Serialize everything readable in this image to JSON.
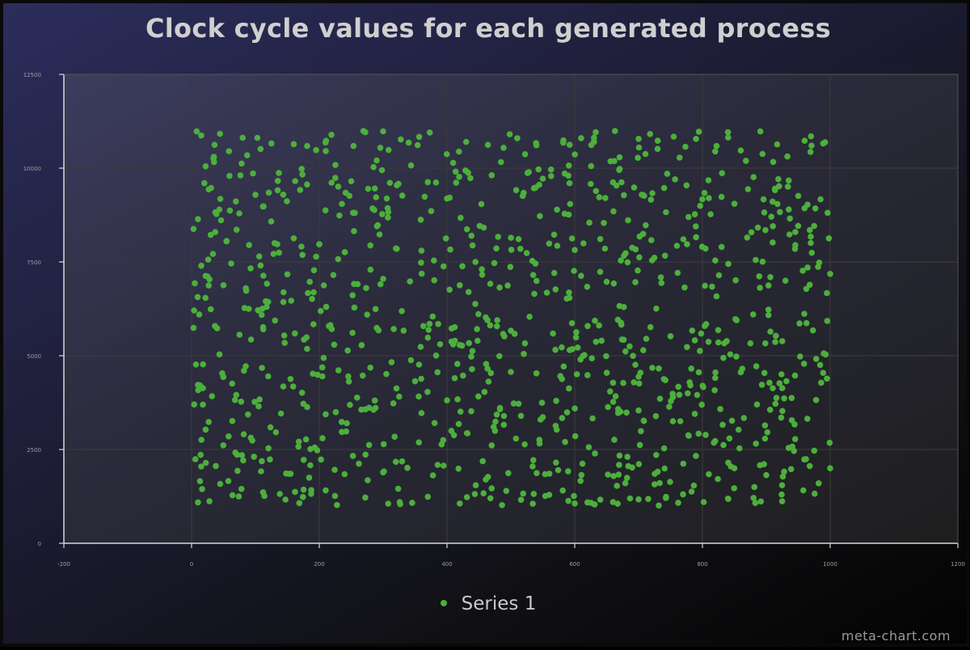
{
  "watermark": "meta-chart.com",
  "chart_data": {
    "type": "scatter",
    "title": "Clock cycle values for each generated process",
    "xlabel": "",
    "ylabel": "",
    "xlim": [
      -200,
      1200
    ],
    "ylim": [
      0,
      12500
    ],
    "x_ticks": [
      "-200",
      "0",
      "200",
      "400",
      "600",
      "800",
      "1000",
      "1200"
    ],
    "y_ticks": [
      "0",
      "2500",
      "5000",
      "7500",
      "10000",
      "12500"
    ],
    "grid": true,
    "legend_position": "bottom",
    "colors": {
      "series": "#4caf3c",
      "grid": "#3a3a3a",
      "axis": "#d8d8d8"
    },
    "series": [
      {
        "name": "Series 1",
        "point_count": 1000,
        "x_range": [
          1,
          1000
        ],
        "y_range": [
          1000,
          11000
        ],
        "points": [
          [
            3,
            8380
          ],
          [
            8,
            10980
          ],
          [
            15,
            10870
          ],
          [
            22,
            10050
          ],
          [
            35,
            10300
          ],
          [
            36,
            10620
          ],
          [
            80,
            10810
          ],
          [
            108,
            10510
          ],
          [
            125,
            10660
          ],
          [
            160,
            10640
          ],
          [
            181,
            10590
          ],
          [
            195,
            10480
          ],
          [
            219,
            10890
          ],
          [
            269,
            10990
          ],
          [
            300,
            10980
          ],
          [
            340,
            10680
          ],
          [
            373,
            10950
          ],
          [
            430,
            10700
          ],
          [
            464,
            10620
          ],
          [
            510,
            10800
          ],
          [
            540,
            10610
          ],
          [
            582,
            10680
          ],
          [
            610,
            10800
          ],
          [
            630,
            10710
          ],
          [
            663,
            10990
          ],
          [
            700,
            10780
          ],
          [
            730,
            10730
          ],
          [
            755,
            10840
          ],
          [
            790,
            10780
          ],
          [
            822,
            10590
          ],
          [
            840,
            10960
          ],
          [
            860,
            10470
          ],
          [
            894,
            10380
          ],
          [
            960,
            10730
          ],
          [
            970,
            10850
          ],
          [
            992,
            10690
          ],
          [
            20,
            9600
          ],
          [
            45,
            9180
          ],
          [
            60,
            8870
          ],
          [
            100,
            9290
          ],
          [
            135,
            9660
          ],
          [
            170,
            9420
          ],
          [
            225,
            9740
          ],
          [
            250,
            9650
          ],
          [
            287,
            9460
          ],
          [
            330,
            9270
          ],
          [
            365,
            9240
          ],
          [
            400,
            9190
          ],
          [
            433,
            9880
          ],
          [
            470,
            9810
          ],
          [
            520,
            9340
          ],
          [
            550,
            9720
          ],
          [
            590,
            9800
          ],
          [
            625,
            9580
          ],
          [
            660,
            9620
          ],
          [
            705,
            9290
          ],
          [
            740,
            9470
          ],
          [
            775,
            9540
          ],
          [
            810,
            9200
          ],
          [
            850,
            9050
          ],
          [
            880,
            9760
          ],
          [
            920,
            9520
          ],
          [
            950,
            9260
          ],
          [
            985,
            9170
          ],
          [
            10,
            8640
          ],
          [
            30,
            8220
          ],
          [
            55,
            8060
          ],
          [
            90,
            7950
          ],
          [
            130,
            8000
          ],
          [
            160,
            8130
          ],
          [
            200,
            7970
          ],
          [
            240,
            7760
          ],
          [
            280,
            7940
          ],
          [
            320,
            7860
          ],
          [
            360,
            7800
          ],
          [
            405,
            7830
          ],
          [
            440,
            7940
          ],
          [
            480,
            8170
          ],
          [
            515,
            7850
          ],
          [
            560,
            7990
          ],
          [
            600,
            7820
          ],
          [
            640,
            8110
          ],
          [
            690,
            7880
          ],
          [
            720,
            8080
          ],
          [
            760,
            7930
          ],
          [
            790,
            8160
          ],
          [
            830,
            7900
          ],
          [
            870,
            8150
          ],
          [
            910,
            8020
          ],
          [
            945,
            7850
          ],
          [
            998,
            8130
          ],
          [
            5,
            6930
          ],
          [
            25,
            7110
          ],
          [
            50,
            6880
          ],
          [
            85,
            6800
          ],
          [
            118,
            6920
          ],
          [
            150,
            7170
          ],
          [
            185,
            6970
          ],
          [
            222,
            7150
          ],
          [
            260,
            6910
          ],
          [
            300,
            7050
          ],
          [
            342,
            6980
          ],
          [
            380,
            7010
          ],
          [
            420,
            6880
          ],
          [
            455,
            7160
          ],
          [
            495,
            6870
          ],
          [
            535,
            7150
          ],
          [
            570,
            6770
          ],
          [
            610,
            7130
          ],
          [
            650,
            6970
          ],
          [
            695,
            6960
          ],
          [
            735,
            7090
          ],
          [
            772,
            6820
          ],
          [
            815,
            6840
          ],
          [
            852,
            7010
          ],
          [
            890,
            6810
          ],
          [
            930,
            7000
          ],
          [
            968,
            6890
          ],
          [
            1000,
            7180
          ],
          [
            12,
            6100
          ],
          [
            40,
            5730
          ],
          [
            75,
            5560
          ],
          [
            112,
            5760
          ],
          [
            145,
            5540
          ],
          [
            180,
            5490
          ],
          [
            215,
            5790
          ],
          [
            252,
            5610
          ],
          [
            290,
            5740
          ],
          [
            332,
            5670
          ],
          [
            370,
            5480
          ],
          [
            412,
            5760
          ],
          [
            447,
            5710
          ],
          [
            488,
            5580
          ],
          [
            522,
            5330
          ],
          [
            566,
            5590
          ],
          [
            602,
            5490
          ],
          [
            642,
            5400
          ],
          [
            686,
            5250
          ],
          [
            712,
            5450
          ],
          [
            750,
            5520
          ],
          [
            798,
            5590
          ],
          [
            838,
            5390
          ],
          [
            875,
            5330
          ],
          [
            915,
            5530
          ],
          [
            952,
            5860
          ],
          [
            990,
            5060
          ],
          [
            18,
            4770
          ],
          [
            48,
            4530
          ],
          [
            82,
            4600
          ],
          [
            120,
            4450
          ],
          [
            155,
            4380
          ],
          [
            190,
            4520
          ],
          [
            230,
            4610
          ],
          [
            268,
            4470
          ],
          [
            305,
            4510
          ],
          [
            350,
            4320
          ],
          [
            385,
            4560
          ],
          [
            425,
            4470
          ],
          [
            465,
            4310
          ],
          [
            500,
            4570
          ],
          [
            540,
            4530
          ],
          [
            580,
            4380
          ],
          [
            620,
            4480
          ],
          [
            660,
            4280
          ],
          [
            700,
            4440
          ],
          [
            742,
            4350
          ],
          [
            780,
            4290
          ],
          [
            820,
            4410
          ],
          [
            860,
            4560
          ],
          [
            905,
            4280
          ],
          [
            945,
            4470
          ],
          [
            995,
            4390
          ],
          [
            4,
            3700
          ],
          [
            32,
            3920
          ],
          [
            68,
            3820
          ],
          [
            105,
            3650
          ],
          [
            140,
            3460
          ],
          [
            175,
            3720
          ],
          [
            210,
            3440
          ],
          [
            248,
            3690
          ],
          [
            285,
            3560
          ],
          [
            325,
            3910
          ],
          [
            360,
            3470
          ],
          [
            400,
            3810
          ],
          [
            438,
            3520
          ],
          [
            478,
            3430
          ],
          [
            512,
            3720
          ],
          [
            550,
            3360
          ],
          [
            588,
            3490
          ],
          [
            628,
            3330
          ],
          [
            668,
            3580
          ],
          [
            708,
            3270
          ],
          [
            748,
            3640
          ],
          [
            788,
            3450
          ],
          [
            828,
            3580
          ],
          [
            865,
            3340
          ],
          [
            906,
            3560
          ],
          [
            940,
            3280
          ],
          [
            978,
            3820
          ],
          [
            22,
            3030
          ],
          [
            58,
            2850
          ],
          [
            95,
            2740
          ],
          [
            132,
            2960
          ],
          [
            168,
            2710
          ],
          [
            205,
            2800
          ],
          [
            242,
            2980
          ],
          [
            278,
            2620
          ],
          [
            318,
            2840
          ],
          [
            356,
            2690
          ],
          [
            394,
            2750
          ],
          [
            432,
            2930
          ],
          [
            470,
            2610
          ],
          [
            508,
            2790
          ],
          [
            545,
            2660
          ],
          [
            585,
            2700
          ],
          [
            622,
            2560
          ],
          [
            662,
            2760
          ],
          [
            702,
            2620
          ],
          [
            740,
            2530
          ],
          [
            778,
            2880
          ],
          [
            818,
            2680
          ],
          [
            858,
            2530
          ],
          [
            898,
            2790
          ],
          [
            935,
            2540
          ],
          [
            975,
            2470
          ],
          [
            6,
            2240
          ],
          [
            38,
            2060
          ],
          [
            72,
            1930
          ],
          [
            110,
            2190
          ],
          [
            148,
            1860
          ],
          [
            186,
            2080
          ],
          [
            224,
            1960
          ],
          [
            262,
            2120
          ],
          [
            300,
            1890
          ],
          [
            338,
            2010
          ],
          [
            378,
            1810
          ],
          [
            418,
            1990
          ],
          [
            456,
            2190
          ],
          [
            496,
            1870
          ],
          [
            534,
            2050
          ],
          [
            574,
            1950
          ],
          [
            612,
            2120
          ],
          [
            652,
            1830
          ],
          [
            690,
            2020
          ],
          [
            730,
            1910
          ],
          [
            770,
            2120
          ],
          [
            810,
            1840
          ],
          [
            850,
            2000
          ],
          [
            890,
            2080
          ],
          [
            928,
            1910
          ],
          [
            968,
            2060
          ],
          [
            1000,
            2000
          ],
          [
            10,
            1090
          ],
          [
            28,
            1120
          ],
          [
            64,
            1280
          ],
          [
            114,
            1260
          ],
          [
            162,
            1370
          ],
          [
            210,
            1410
          ],
          [
            272,
            1220
          ],
          [
            326,
            1100
          ],
          [
            370,
            1240
          ],
          [
            420,
            1060
          ],
          [
            468,
            1200
          ],
          [
            516,
            1160
          ],
          [
            560,
            1290
          ],
          [
            590,
            1130
          ],
          [
            600,
            1060
          ],
          [
            620,
            1090
          ],
          [
            660,
            1100
          ],
          [
            715,
            1180
          ],
          [
            762,
            1080
          ],
          [
            802,
            1100
          ],
          [
            840,
            1190
          ],
          [
            880,
            1210
          ],
          [
            924,
            1300
          ],
          [
            958,
            1410
          ],
          [
            982,
            1600
          ]
        ]
      }
    ]
  }
}
